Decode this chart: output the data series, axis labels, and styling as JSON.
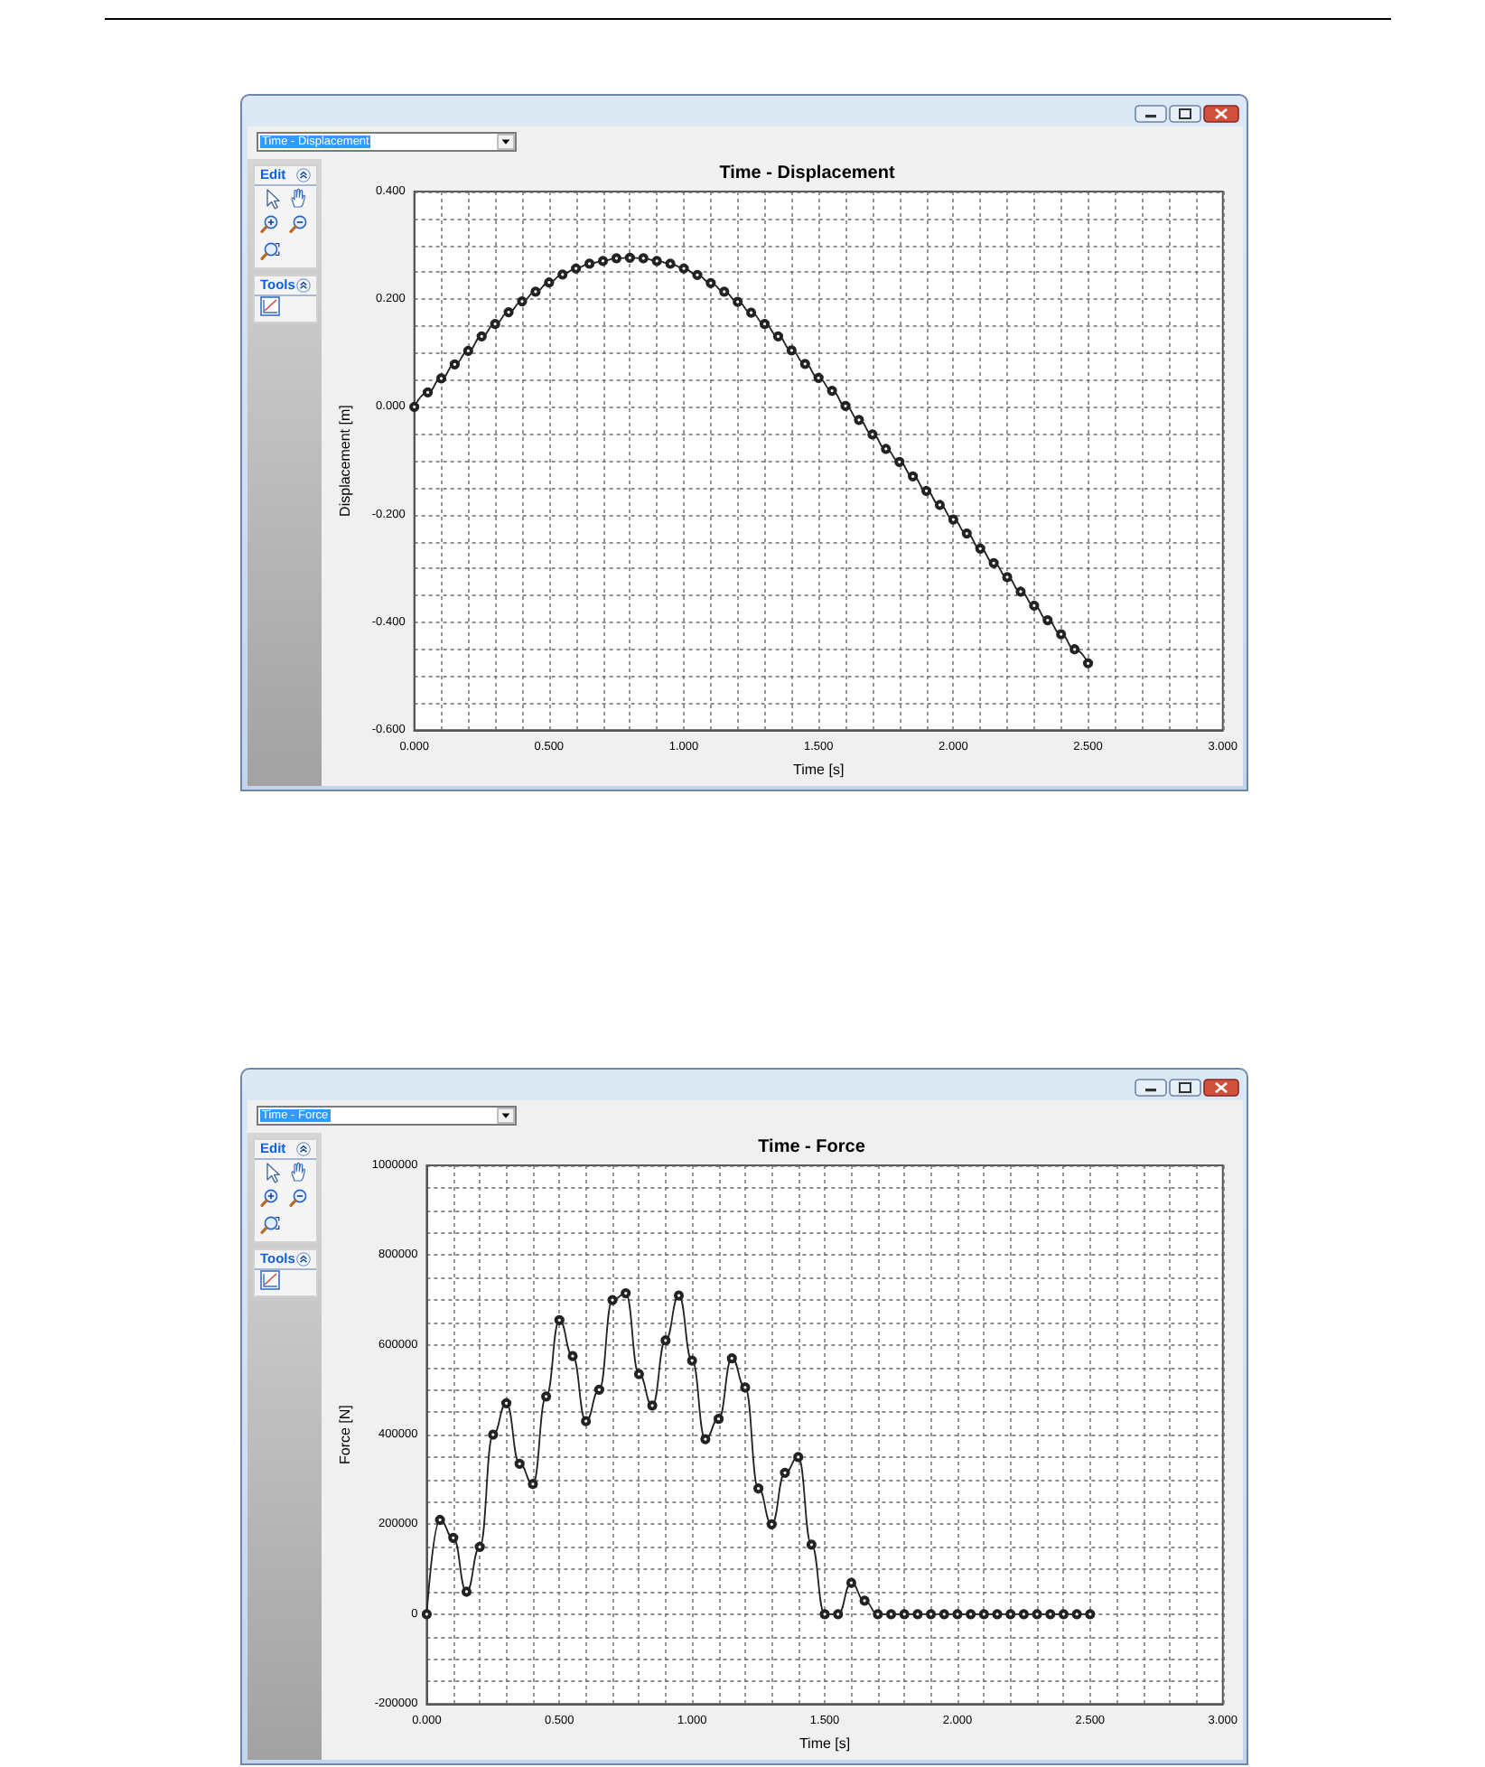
{
  "chart_data": [
    {
      "type": "line",
      "title": "Time - Displacement",
      "xlabel": "Time [s]",
      "ylabel": "Displacement [m]",
      "annotations": [
        "Time - Displacement",
        "Edit",
        "Tools"
      ],
      "x": [
        0,
        0.05,
        0.1,
        0.15,
        0.2,
        0.25,
        0.3,
        0.35,
        0.4,
        0.45,
        0.5,
        0.55,
        0.6,
        0.65,
        0.7,
        0.75,
        0.8,
        0.85,
        0.9,
        0.95,
        1,
        1.05,
        1.1,
        1.15,
        1.2,
        1.25,
        1.3,
        1.35,
        1.4,
        1.45,
        1.5,
        1.55,
        1.6,
        1.65,
        1.7,
        1.75,
        1.8,
        1.85,
        1.9,
        1.95,
        2,
        2.05,
        2.1,
        2.15,
        2.2,
        2.25,
        2.3,
        2.35,
        2.4,
        2.45,
        2.5
      ],
      "values": [
        0,
        0.027,
        0.053,
        0.079,
        0.104,
        0.131,
        0.154,
        0.176,
        0.196,
        0.214,
        0.231,
        0.246,
        0.257,
        0.266,
        0.271,
        0.276,
        0.277,
        0.276,
        0.271,
        0.266,
        0.257,
        0.245,
        0.23,
        0.214,
        0.195,
        0.175,
        0.154,
        0.131,
        0.105,
        0.08,
        0.054,
        0.03,
        0.002,
        -0.024,
        -0.051,
        -0.078,
        -0.102,
        -0.129,
        -0.156,
        -0.182,
        -0.209,
        -0.235,
        -0.263,
        -0.29,
        -0.316,
        -0.343,
        -0.369,
        -0.396,
        -0.422,
        -0.45,
        -0.476
      ],
      "color": "#222222",
      "marker": "circle",
      "line_style": "solid",
      "grid": true,
      "xlim": [
        0,
        3
      ],
      "xticks": [
        {
          "value": 0,
          "label": "0.000"
        },
        {
          "value": 0.1,
          "label": null
        },
        {
          "value": 0.2,
          "label": null
        },
        {
          "value": 0.3,
          "label": null
        },
        {
          "value": 0.4,
          "label": null
        },
        {
          "value": 0.5,
          "label": "0.500"
        },
        {
          "value": 0.6,
          "label": null
        },
        {
          "value": 0.7,
          "label": null
        },
        {
          "value": 0.8,
          "label": null
        },
        {
          "value": 0.9,
          "label": null
        },
        {
          "value": 1,
          "label": "1.000"
        },
        {
          "value": 1.1,
          "label": null
        },
        {
          "value": 1.2,
          "label": null
        },
        {
          "value": 1.3,
          "label": null
        },
        {
          "value": 1.4,
          "label": null
        },
        {
          "value": 1.5,
          "label": "1.500"
        },
        {
          "value": 1.6,
          "label": null
        },
        {
          "value": 1.7,
          "label": null
        },
        {
          "value": 1.8,
          "label": null
        },
        {
          "value": 1.9,
          "label": null
        },
        {
          "value": 2,
          "label": "2.000"
        },
        {
          "value": 2.1,
          "label": null
        },
        {
          "value": 2.2,
          "label": null
        },
        {
          "value": 2.3,
          "label": null
        },
        {
          "value": 2.4,
          "label": null
        },
        {
          "value": 2.5,
          "label": "2.500"
        },
        {
          "value": 2.6,
          "label": null
        },
        {
          "value": 2.7,
          "label": null
        },
        {
          "value": 2.8,
          "label": null
        },
        {
          "value": 2.9,
          "label": null
        },
        {
          "value": 3,
          "label": "3.000"
        }
      ],
      "ylim": [
        -0.6,
        0.4
      ],
      "yticks": [
        {
          "value": -0.6,
          "label": "-0.600"
        },
        {
          "value": -0.55,
          "label": null
        },
        {
          "value": -0.5,
          "label": null
        },
        {
          "value": -0.45,
          "label": null
        },
        {
          "value": -0.4,
          "label": "-0.400"
        },
        {
          "value": -0.35,
          "label": null
        },
        {
          "value": -0.3,
          "label": null
        },
        {
          "value": -0.25,
          "label": null
        },
        {
          "value": -0.2,
          "label": "-0.200"
        },
        {
          "value": -0.15,
          "label": null
        },
        {
          "value": -0.1,
          "label": null
        },
        {
          "value": -0.05,
          "label": null
        },
        {
          "value": 0,
          "label": "0.000"
        },
        {
          "value": 0.05,
          "label": null
        },
        {
          "value": 0.1,
          "label": null
        },
        {
          "value": 0.15,
          "label": null
        },
        {
          "value": 0.2,
          "label": "0.200"
        },
        {
          "value": 0.25,
          "label": null
        },
        {
          "value": 0.3,
          "label": null
        },
        {
          "value": 0.35,
          "label": null
        },
        {
          "value": 0.4,
          "label": "0.400"
        }
      ]
    },
    {
      "type": "line",
      "title": "Time - Force",
      "xlabel": "Time [s]",
      "ylabel": "Force [N]",
      "annotations": [
        "Time - Force",
        "Edit",
        "Tools"
      ],
      "x": [
        0,
        0.05,
        0.1,
        0.15,
        0.2,
        0.25,
        0.3,
        0.35,
        0.4,
        0.45,
        0.5,
        0.55,
        0.6,
        0.65,
        0.7,
        0.75,
        0.8,
        0.85,
        0.9,
        0.95,
        1,
        1.05,
        1.1,
        1.15,
        1.2,
        1.25,
        1.3,
        1.35,
        1.4,
        1.45,
        1.5,
        1.55,
        1.6,
        1.65,
        1.7,
        1.75,
        1.8,
        1.85,
        1.9,
        1.95,
        2,
        2.05,
        2.1,
        2.15,
        2.2,
        2.25,
        2.3,
        2.35,
        2.4,
        2.45,
        2.5
      ],
      "values": [
        0,
        210000,
        170000,
        50000,
        150000,
        400000,
        470000,
        335000,
        290000,
        485000,
        655000,
        575000,
        430000,
        500000,
        700000,
        715000,
        535000,
        465000,
        610000,
        710000,
        565000,
        390000,
        435000,
        570000,
        505000,
        280000,
        200000,
        315000,
        350000,
        155000,
        0,
        0,
        70000,
        30000,
        0,
        0,
        0,
        0,
        0,
        0,
        0,
        0,
        0,
        0,
        0,
        0,
        0,
        0,
        0,
        0,
        0
      ],
      "color": "#222222",
      "marker": "circle",
      "line_style": "solid",
      "grid": true,
      "xlim": [
        0,
        3
      ],
      "xticks": [
        {
          "value": 0,
          "label": "0.000"
        },
        {
          "value": 0.1,
          "label": null
        },
        {
          "value": 0.2,
          "label": null
        },
        {
          "value": 0.3,
          "label": null
        },
        {
          "value": 0.4,
          "label": null
        },
        {
          "value": 0.5,
          "label": "0.500"
        },
        {
          "value": 0.6,
          "label": null
        },
        {
          "value": 0.7,
          "label": null
        },
        {
          "value": 0.8,
          "label": null
        },
        {
          "value": 0.9,
          "label": null
        },
        {
          "value": 1,
          "label": "1.000"
        },
        {
          "value": 1.1,
          "label": null
        },
        {
          "value": 1.2,
          "label": null
        },
        {
          "value": 1.3,
          "label": null
        },
        {
          "value": 1.4,
          "label": null
        },
        {
          "value": 1.5,
          "label": "1.500"
        },
        {
          "value": 1.6,
          "label": null
        },
        {
          "value": 1.7,
          "label": null
        },
        {
          "value": 1.8,
          "label": null
        },
        {
          "value": 1.9,
          "label": null
        },
        {
          "value": 2,
          "label": "2.000"
        },
        {
          "value": 2.1,
          "label": null
        },
        {
          "value": 2.2,
          "label": null
        },
        {
          "value": 2.3,
          "label": null
        },
        {
          "value": 2.4,
          "label": null
        },
        {
          "value": 2.5,
          "label": "2.500"
        },
        {
          "value": 2.6,
          "label": null
        },
        {
          "value": 2.7,
          "label": null
        },
        {
          "value": 2.8,
          "label": null
        },
        {
          "value": 2.9,
          "label": null
        },
        {
          "value": 3,
          "label": "3.000"
        }
      ],
      "ylim": [
        -200000,
        1000000
      ],
      "yticks": [
        -200000,
        {
          "value": -150000,
          "label": null
        },
        {
          "value": -100000,
          "label": null
        },
        {
          "value": -50000,
          "label": null
        },
        0,
        {
          "value": 50000,
          "label": null
        },
        {
          "value": 100000,
          "label": null
        },
        {
          "value": 150000,
          "label": null
        },
        200000,
        {
          "value": 250000,
          "label": null
        },
        {
          "value": 300000,
          "label": null
        },
        {
          "value": 350000,
          "label": null
        },
        400000,
        {
          "value": 450000,
          "label": null
        },
        {
          "value": 500000,
          "label": null
        },
        {
          "value": 550000,
          "label": null
        },
        600000,
        {
          "value": 650000,
          "label": null
        },
        {
          "value": 700000,
          "label": null
        },
        {
          "value": 750000,
          "label": null
        },
        800000,
        {
          "value": 850000,
          "label": null
        },
        {
          "value": 900000,
          "label": null
        },
        {
          "value": 950000,
          "label": null
        },
        1000000
      ]
    }
  ]
}
